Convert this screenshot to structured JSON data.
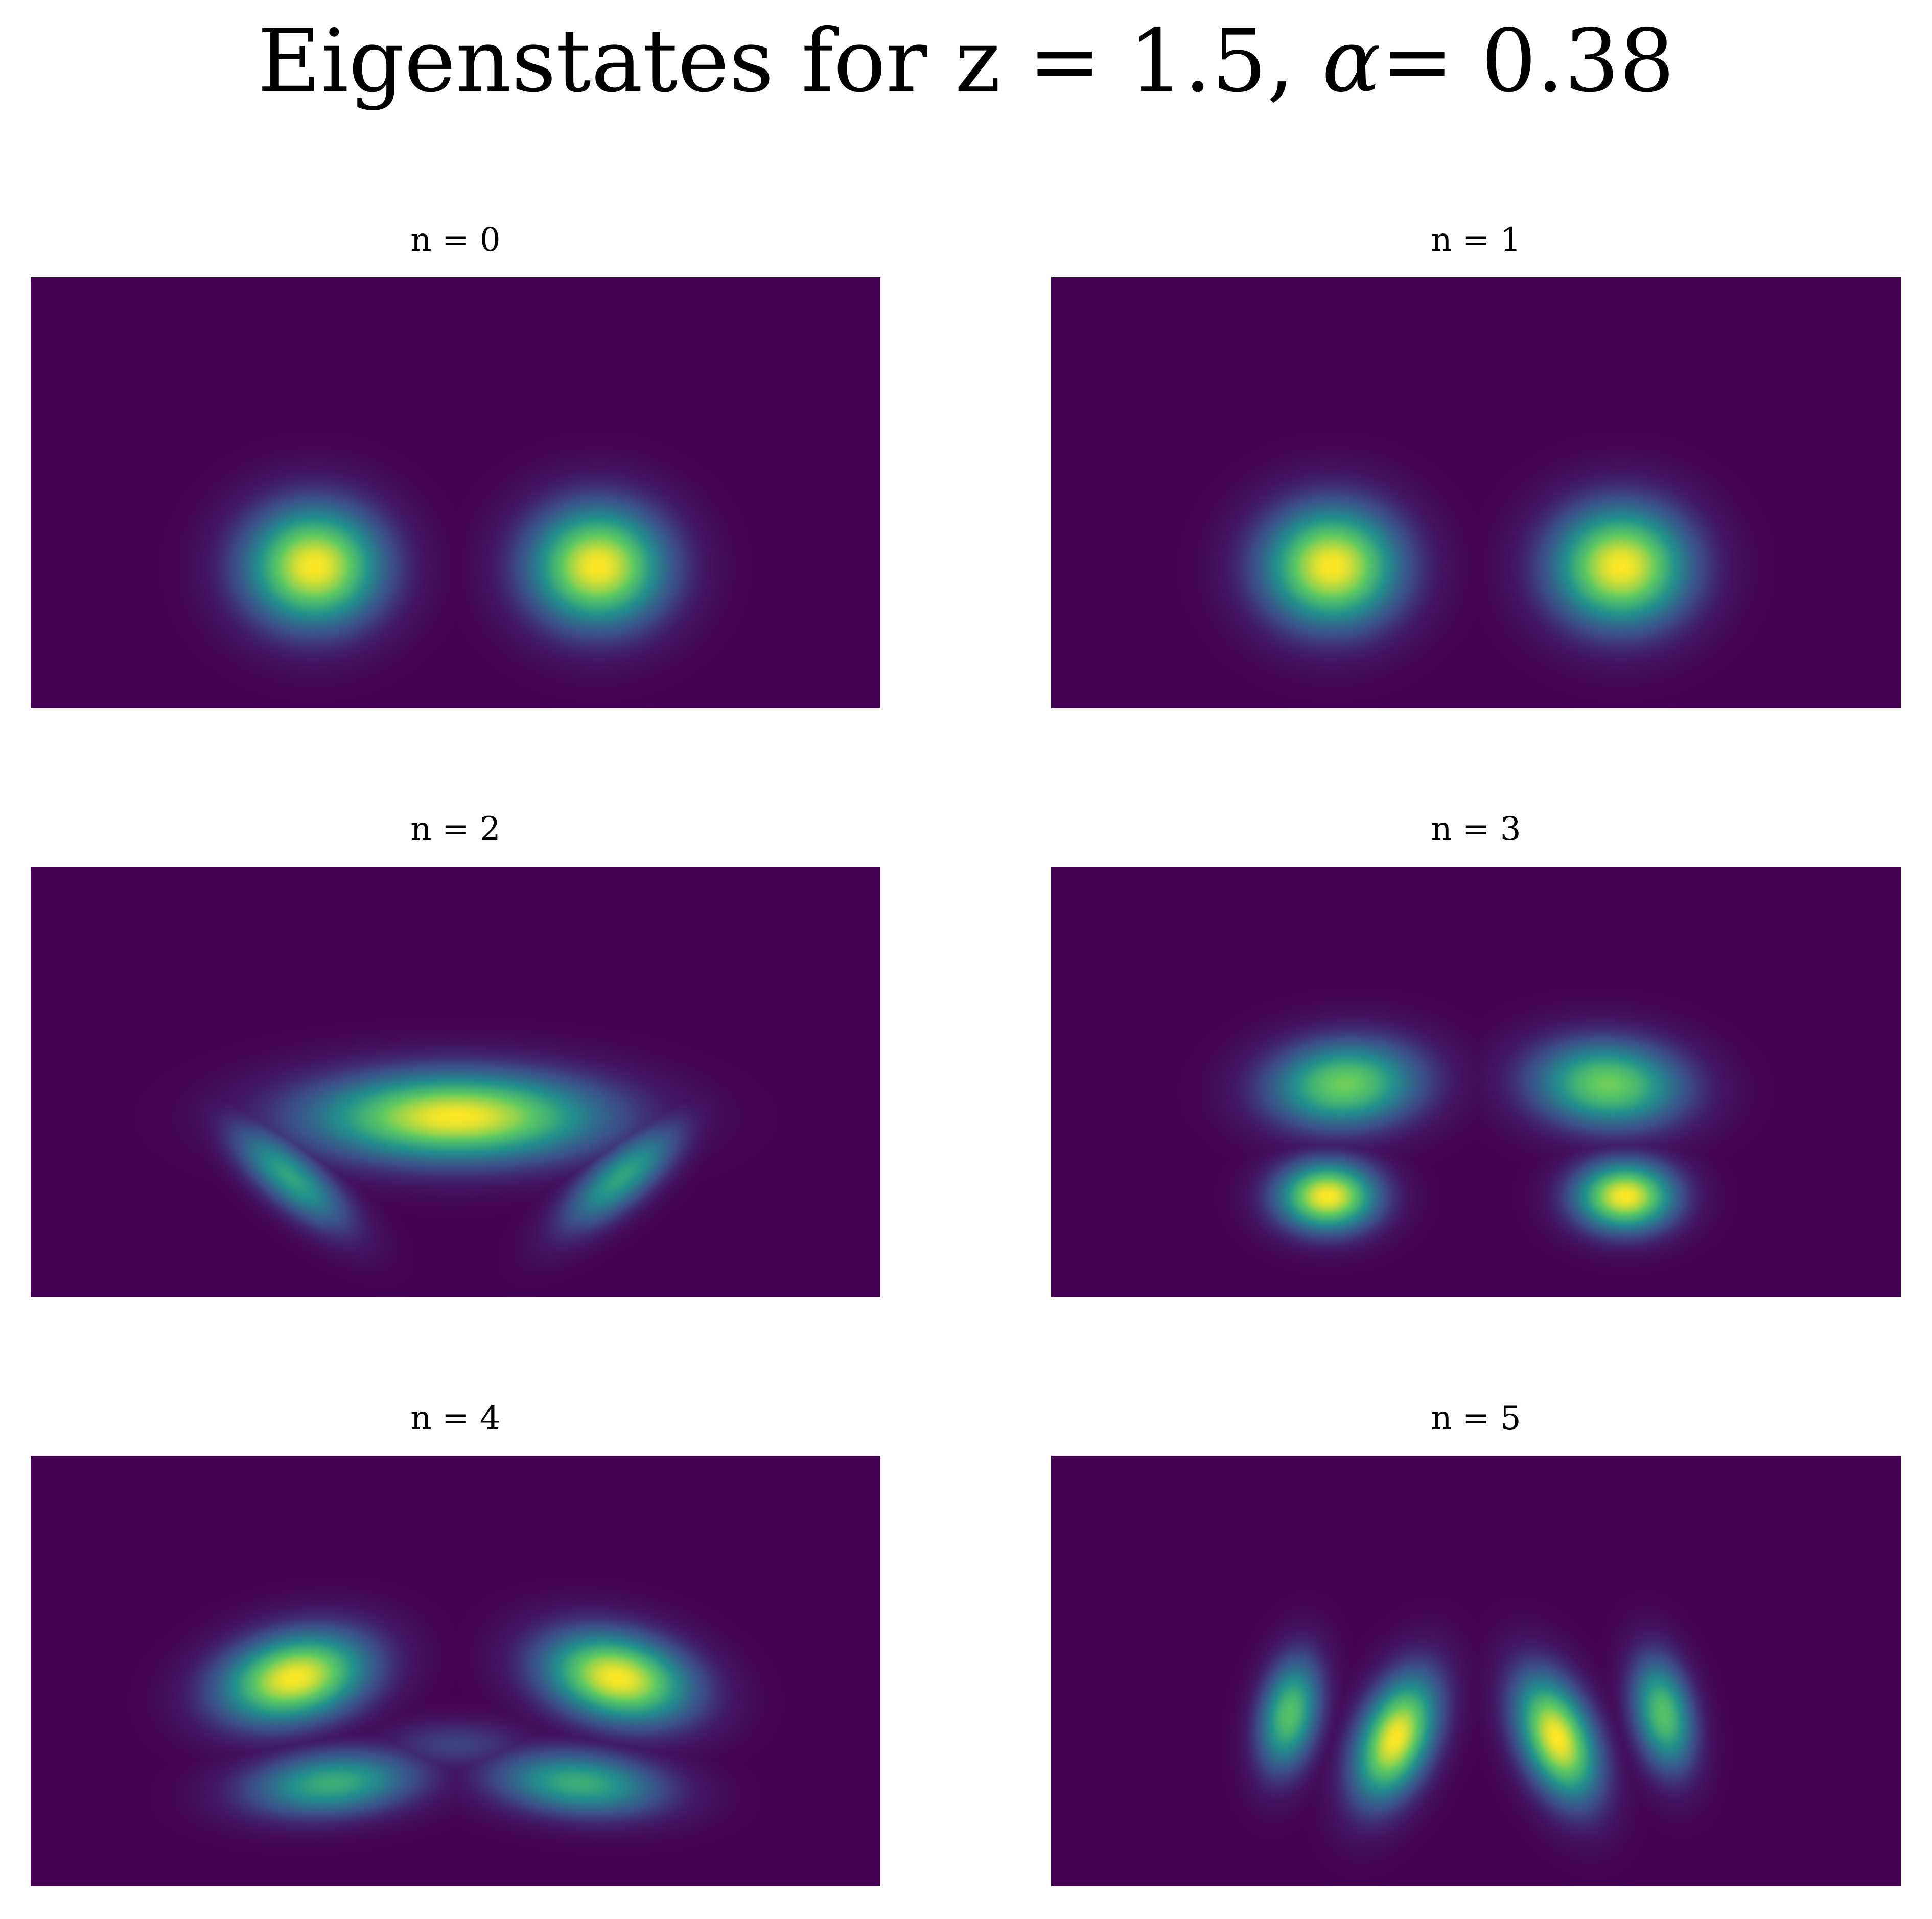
{
  "title": {
    "prefix": "Eigenstates for z = 1.5, ",
    "alpha_symbol": "α",
    "suffix": "= 0.38"
  },
  "colors": {
    "background": "#440154",
    "colormap": "viridis",
    "colormap_stops": [
      "#440154",
      "#3b528b",
      "#21918c",
      "#5ec962",
      "#fde725"
    ]
  },
  "chart_data": [
    {
      "type": "heatmap",
      "title": "n = 0",
      "n": 0,
      "axes": "off",
      "lobes": [
        {
          "cx": 0.333,
          "cy": 0.67,
          "sx": 0.055,
          "sy": 0.095,
          "amp": 1.0,
          "rot": 0
        },
        {
          "cx": 0.667,
          "cy": 0.67,
          "sx": 0.055,
          "sy": 0.095,
          "amp": 1.0,
          "rot": 0
        }
      ]
    },
    {
      "type": "heatmap",
      "title": "n = 1",
      "n": 1,
      "axes": "off",
      "lobes": [
        {
          "cx": 0.33,
          "cy": 0.67,
          "sx": 0.055,
          "sy": 0.095,
          "amp": 1.0,
          "rot": 0
        },
        {
          "cx": 0.67,
          "cy": 0.67,
          "sx": 0.055,
          "sy": 0.095,
          "amp": 1.0,
          "rot": 0
        }
      ]
    },
    {
      "type": "heatmap",
      "title": "n = 2",
      "n": 2,
      "axes": "off",
      "lobes": [
        {
          "cx": 0.5,
          "cy": 0.58,
          "sx": 0.115,
          "sy": 0.07,
          "amp": 1.0,
          "rot": 0
        },
        {
          "cx": 0.305,
          "cy": 0.72,
          "sx": 0.028,
          "sy": 0.09,
          "amp": 0.58,
          "rot": -0.45
        },
        {
          "cx": 0.695,
          "cy": 0.72,
          "sx": 0.028,
          "sy": 0.09,
          "amp": 0.58,
          "rot": 0.45
        }
      ]
    },
    {
      "type": "heatmap",
      "title": "n = 3",
      "n": 3,
      "axes": "off",
      "lobes": [
        {
          "cx": 0.345,
          "cy": 0.505,
          "sx": 0.06,
          "sy": 0.07,
          "amp": 0.78,
          "rot": 0.25
        },
        {
          "cx": 0.655,
          "cy": 0.505,
          "sx": 0.06,
          "sy": 0.07,
          "amp": 0.78,
          "rot": -0.25
        },
        {
          "cx": 0.325,
          "cy": 0.765,
          "sx": 0.04,
          "sy": 0.055,
          "amp": 1.0,
          "rot": 0
        },
        {
          "cx": 0.675,
          "cy": 0.765,
          "sx": 0.04,
          "sy": 0.055,
          "amp": 1.0,
          "rot": 0
        }
      ]
    },
    {
      "type": "heatmap",
      "title": "n = 4",
      "n": 4,
      "axes": "off",
      "lobes": [
        {
          "cx": 0.31,
          "cy": 0.515,
          "sx": 0.055,
          "sy": 0.075,
          "amp": 1.0,
          "rot": 0.45
        },
        {
          "cx": 0.69,
          "cy": 0.515,
          "sx": 0.055,
          "sy": 0.075,
          "amp": 1.0,
          "rot": -0.45
        },
        {
          "cx": 0.355,
          "cy": 0.76,
          "sx": 0.07,
          "sy": 0.05,
          "amp": 0.62,
          "rot": -0.3
        },
        {
          "cx": 0.645,
          "cy": 0.76,
          "sx": 0.07,
          "sy": 0.05,
          "amp": 0.62,
          "rot": 0.3
        },
        {
          "cx": 0.5,
          "cy": 0.67,
          "sx": 0.06,
          "sy": 0.04,
          "amp": 0.2,
          "rot": 0
        }
      ]
    },
    {
      "type": "heatmap",
      "title": "n = 5",
      "n": 5,
      "axes": "off",
      "lobes": [
        {
          "cx": 0.28,
          "cy": 0.6,
          "sx": 0.024,
          "sy": 0.09,
          "amp": 0.72,
          "rot": 0.08
        },
        {
          "cx": 0.405,
          "cy": 0.655,
          "sx": 0.03,
          "sy": 0.1,
          "amp": 1.0,
          "rot": 0.15
        },
        {
          "cx": 0.595,
          "cy": 0.655,
          "sx": 0.03,
          "sy": 0.1,
          "amp": 1.0,
          "rot": -0.15
        },
        {
          "cx": 0.72,
          "cy": 0.6,
          "sx": 0.024,
          "sy": 0.09,
          "amp": 0.72,
          "rot": -0.08
        }
      ]
    }
  ]
}
